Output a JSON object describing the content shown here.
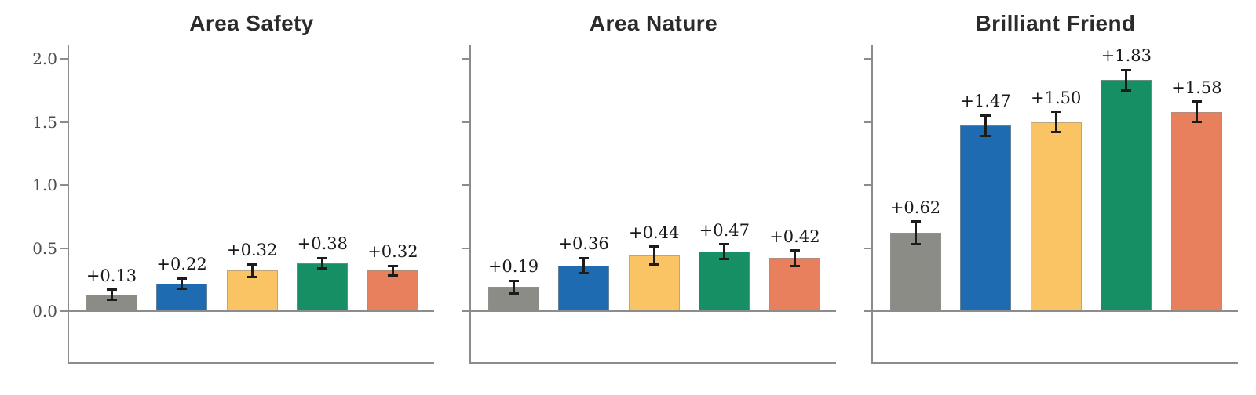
{
  "colors": {
    "background": "#ffffff",
    "bar_palette": [
      "#8c8c86",
      "#1f6bb2",
      "#fac364",
      "#178f64",
      "#e8805e"
    ],
    "bar_edge": "#92928c",
    "error_bar": "#1c1c1c",
    "axis": "#8c8c8c",
    "tick_label": "#4d4d4d",
    "value_label": "#1a1a1a",
    "title": "#2b2b2b"
  },
  "chart_data": [
    {
      "type": "bar",
      "title": "Area Safety",
      "values": [
        0.13,
        0.22,
        0.32,
        0.38,
        0.32
      ],
      "value_labels": [
        "+0.13",
        "+0.22",
        "+0.32",
        "+0.38",
        "+0.32"
      ],
      "error_bars": [
        0.04,
        0.04,
        0.05,
        0.04,
        0.04
      ],
      "ylim": [
        -0.4,
        2.1
      ],
      "ytick_values": [
        0.0,
        0.5,
        1.0,
        1.5,
        2.0
      ],
      "ytick_labels": [
        "0.0",
        "0.5",
        "1.0",
        "1.5",
        "2.0"
      ],
      "show_ytick_labels": true,
      "xtick_labels": [],
      "grid": false,
      "legend": null
    },
    {
      "type": "bar",
      "title": "Area Nature",
      "values": [
        0.19,
        0.36,
        0.44,
        0.47,
        0.42
      ],
      "value_labels": [
        "+0.19",
        "+0.36",
        "+0.44",
        "+0.47",
        "+0.42"
      ],
      "error_bars": [
        0.05,
        0.06,
        0.07,
        0.06,
        0.06
      ],
      "ylim": [
        -0.4,
        2.1
      ],
      "ytick_values": [
        0.0,
        0.5,
        1.0,
        1.5,
        2.0
      ],
      "ytick_labels": [
        "0.0",
        "0.5",
        "1.0",
        "1.5",
        "2.0"
      ],
      "show_ytick_labels": false,
      "xtick_labels": [],
      "grid": false,
      "legend": null
    },
    {
      "type": "bar",
      "title": "Brilliant Friend",
      "values": [
        0.62,
        1.47,
        1.5,
        1.83,
        1.58
      ],
      "value_labels": [
        "+0.62",
        "+1.47",
        "+1.50",
        "+1.83",
        "+1.58"
      ],
      "error_bars": [
        0.09,
        0.08,
        0.08,
        0.08,
        0.08
      ],
      "ylim": [
        -0.4,
        2.1
      ],
      "ytick_values": [
        0.0,
        0.5,
        1.0,
        1.5,
        2.0
      ],
      "ytick_labels": [
        "0.0",
        "0.5",
        "1.0",
        "1.5",
        "2.0"
      ],
      "show_ytick_labels": false,
      "xtick_labels": [],
      "grid": false,
      "legend": null
    }
  ]
}
